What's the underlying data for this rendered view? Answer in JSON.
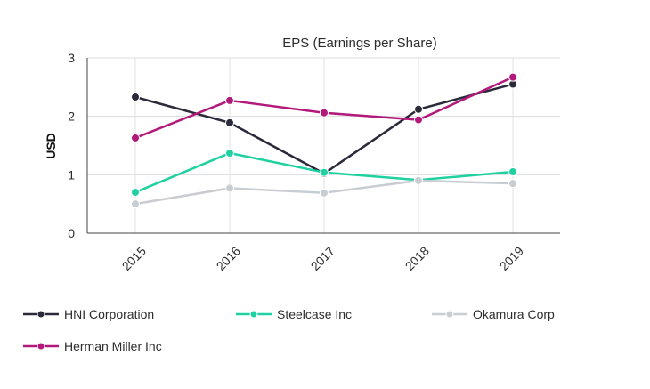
{
  "chart_data": {
    "type": "line",
    "title": "EPS (Earnings per Share)",
    "xlabel": "",
    "ylabel": "USD",
    "categories": [
      "2015",
      "2016",
      "2017",
      "2018",
      "2019"
    ],
    "ylim": [
      0,
      3
    ],
    "yticks": [
      0,
      1,
      2,
      3
    ],
    "grid": true,
    "legend_position": "bottom",
    "series": [
      {
        "name": "HNI Corporation",
        "color": "#2b2a3a",
        "values": [
          2.33,
          1.89,
          1.02,
          2.12,
          2.55
        ]
      },
      {
        "name": "Steelcase Inc",
        "color": "#1fd1a1",
        "values": [
          0.7,
          1.37,
          1.04,
          0.91,
          1.05
        ]
      },
      {
        "name": "Okamura Corp",
        "color": "#c8cdd2",
        "values": [
          0.5,
          0.77,
          0.69,
          0.9,
          0.85
        ]
      },
      {
        "name": "Herman Miller Inc",
        "color": "#b3197a",
        "values": [
          1.63,
          2.27,
          2.06,
          1.94,
          2.67
        ]
      }
    ]
  }
}
